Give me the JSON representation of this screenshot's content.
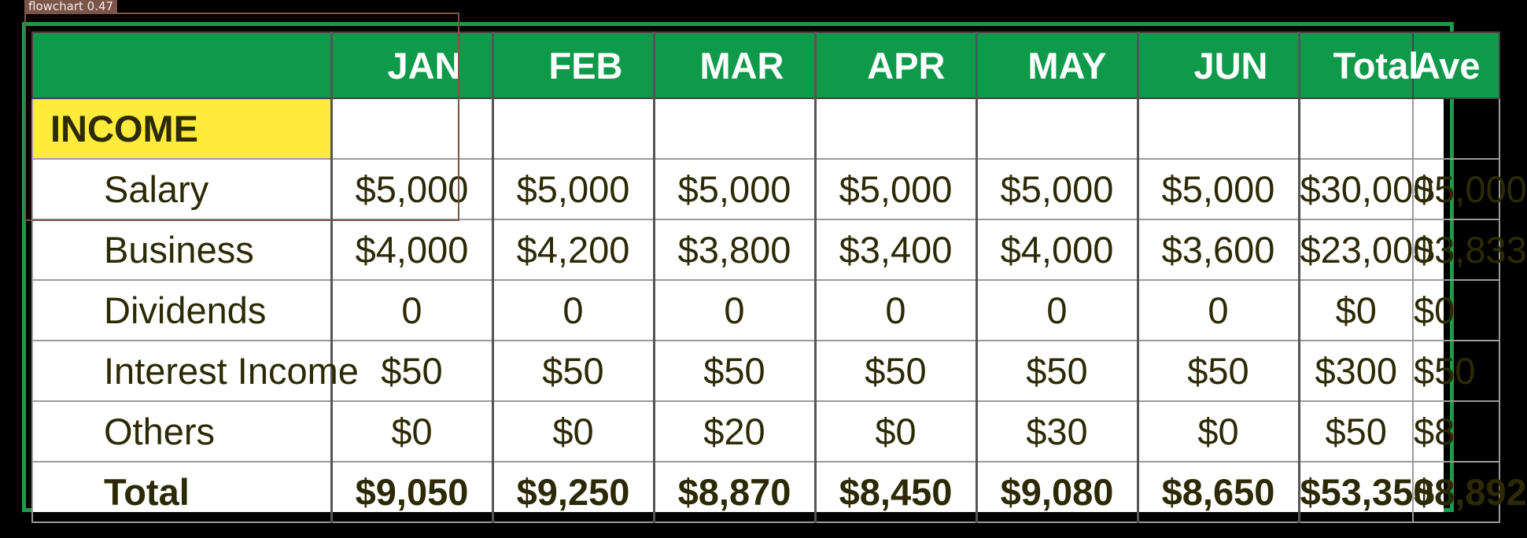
{
  "detection": {
    "label": "flowchart 0.47"
  },
  "header": {
    "blank": "",
    "months": [
      "JAN",
      "FEB",
      "MAR",
      "APR",
      "MAY",
      "JUN"
    ],
    "total": "Total",
    "average": "Ave"
  },
  "income_label": "INCOME",
  "rows": [
    {
      "label": "Salary",
      "values": [
        "$5,000",
        "$5,000",
        "$5,000",
        "$5,000",
        "$5,000",
        "$5,000"
      ],
      "total": "$30,000",
      "average": "$5,000"
    },
    {
      "label": "Business",
      "values": [
        "$4,000",
        "$4,200",
        "$3,800",
        "$3,400",
        "$4,000",
        "$3,600"
      ],
      "total": "$23,000",
      "average": "$3,833"
    },
    {
      "label": "Dividends",
      "values": [
        "0",
        "0",
        "0",
        "0",
        "0",
        "0"
      ],
      "total": "$0",
      "average": "$0"
    },
    {
      "label": "Interest Income",
      "values": [
        "$50",
        "$50",
        "$50",
        "$50",
        "$50",
        "$50"
      ],
      "total": "$300",
      "average": "$50"
    },
    {
      "label": "Others",
      "values": [
        "$0",
        "$0",
        "$20",
        "$0",
        "$30",
        "$0"
      ],
      "total": "$50",
      "average": "$8"
    }
  ],
  "total_row": {
    "label": "Total",
    "values": [
      "$9,050",
      "$9,250",
      "$8,870",
      "$8,450",
      "$9,080",
      "$8,650"
    ],
    "total": "$53,350",
    "average": "$8,892"
  },
  "colors": {
    "header_green": "#0e9a4a",
    "frame_green": "#1f9a4a",
    "income_yellow": "#ffeb3b",
    "text": "#2c2a05",
    "detect_box": "#7a5548"
  }
}
